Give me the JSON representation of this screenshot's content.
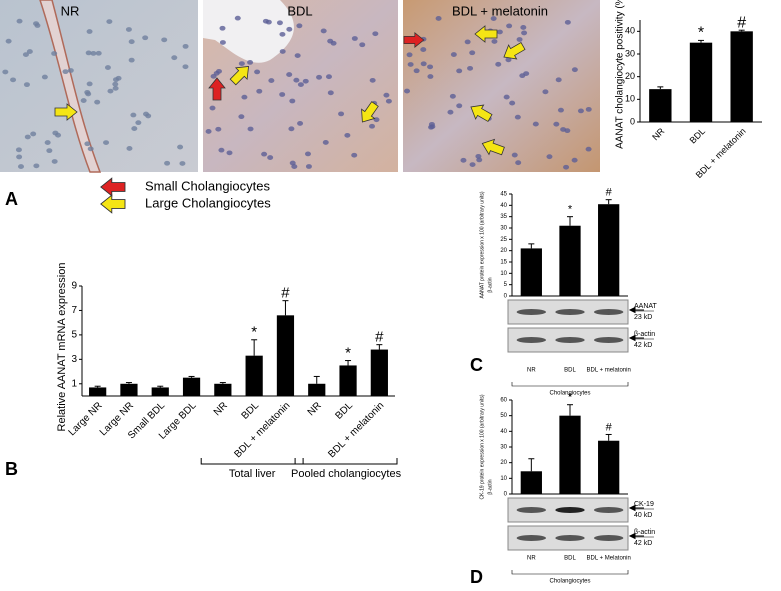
{
  "figure": {
    "micrographs": [
      "NR",
      "BDL",
      "BDL + melatonin"
    ],
    "legend": [
      "Small Cholangiocytes",
      "Large Cholangiocytes"
    ],
    "panel_letters": [
      "A",
      "B",
      "C",
      "D"
    ]
  },
  "chart_data": [
    {
      "type": "bar",
      "ylabel": "AANAT cholangiocyte positivity (%)",
      "categories": [
        "NR",
        "BDL",
        "BDL + melatonin"
      ],
      "values": [
        14.5,
        35,
        40
      ],
      "errors": [
        1,
        1,
        0.5
      ],
      "bar_labels": [
        null,
        "*",
        "#"
      ],
      "color": "#000000",
      "ylim": [
        0,
        45
      ],
      "yticks": [
        0,
        10,
        20,
        30,
        40
      ]
    },
    {
      "type": "bar",
      "ylabel": "Relative AANAT mRNA expression",
      "categories": [
        "Large NR",
        "Large NR",
        "Small BDL",
        "Large BDL",
        "NR",
        "BDL",
        "BDL + melatonin",
        "NR",
        "BDL",
        "BDL + melatonin"
      ],
      "values": [
        0.7,
        1.0,
        0.7,
        1.5,
        1.0,
        3.3,
        6.6,
        1.0,
        2.5,
        3.8
      ],
      "errors": [
        0.1,
        0.1,
        0.1,
        0.1,
        0.1,
        1.3,
        1.2,
        0.6,
        0.4,
        0.4
      ],
      "bar_labels": [
        null,
        null,
        null,
        null,
        null,
        "*",
        "#",
        null,
        "*",
        "#"
      ],
      "group_labels": [
        "Total liver",
        "Pooled cholangiocytes"
      ],
      "color": "#000000",
      "ylim": [
        0,
        9
      ],
      "yticks": [
        1,
        3,
        5,
        7,
        9
      ]
    },
    {
      "type": "bar",
      "ylabel": "AANAT protein expression x 100 (arbitrary units)",
      "ylabel_denominator": "β-actin",
      "categories": [
        "NR",
        "BDL",
        "BDL + melatonin"
      ],
      "values": [
        21,
        31,
        40.5
      ],
      "errors": [
        2,
        4,
        2
      ],
      "bar_labels": [
        null,
        "*",
        "#"
      ],
      "blot_labels": [
        "AANAT",
        "23 kD",
        "β-actin",
        "42 kD"
      ],
      "group_label": "Cholangiocytes",
      "color": "#000000",
      "ylim": [
        0,
        45
      ],
      "yticks": [
        0,
        5,
        10,
        15,
        20,
        25,
        30,
        35,
        40,
        45
      ]
    },
    {
      "type": "bar",
      "ylabel": "CK-19 protein expression x 100 (arbitrary units)",
      "ylabel_denominator": "β-actin",
      "categories": [
        "NR",
        "BDL",
        "BDL + Melatonin"
      ],
      "values": [
        14.5,
        50,
        34
      ],
      "errors": [
        8,
        7,
        4
      ],
      "bar_labels": [
        null,
        "*",
        "#"
      ],
      "blot_labels": [
        "CK-19",
        "40 kD",
        "β-actin",
        "42 kD"
      ],
      "group_label": "Cholangiocytes",
      "color": "#000000",
      "ylim": [
        0,
        60
      ],
      "yticks": [
        0,
        10,
        20,
        30,
        40,
        50,
        60
      ]
    }
  ]
}
